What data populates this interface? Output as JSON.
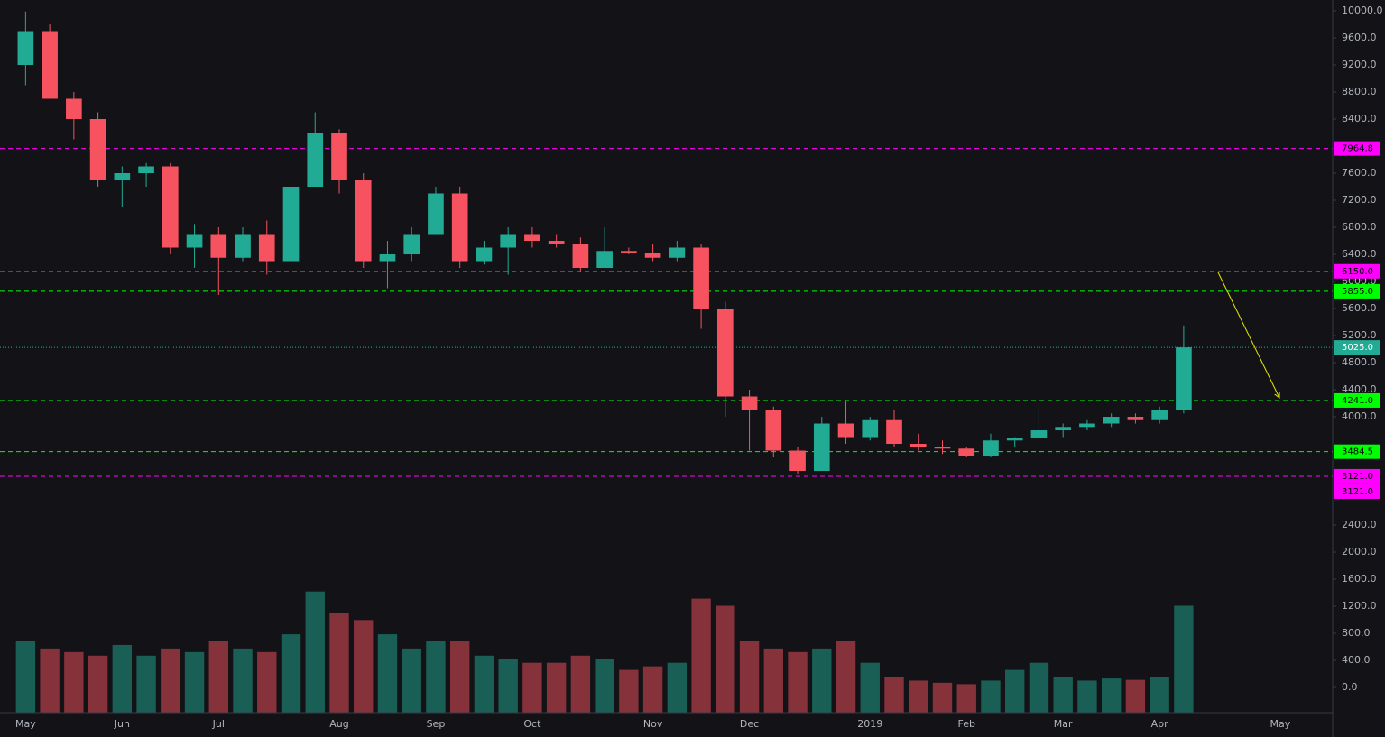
{
  "chart_data": {
    "type": "candlestick",
    "categories": [
      "May",
      null,
      null,
      null,
      "Jun",
      null,
      null,
      null,
      "Jul",
      null,
      null,
      null,
      null,
      "Aug",
      null,
      null,
      null,
      "Sep",
      null,
      null,
      null,
      "Oct",
      null,
      null,
      null,
      null,
      "Nov",
      null,
      null,
      null,
      "Dec",
      null,
      null,
      null,
      null,
      "2019",
      null,
      null,
      null,
      "Feb",
      null,
      null,
      null,
      "Mar",
      null,
      null,
      null,
      "Apr",
      null,
      null,
      null,
      null,
      "May"
    ],
    "open": [
      9200,
      9700,
      8700,
      8400,
      7500,
      7600,
      7700,
      6500,
      6700,
      6350,
      6700,
      6300,
      7400,
      8200,
      7500,
      6300,
      6400,
      6700,
      7300,
      6300,
      6500,
      6700,
      6600,
      6550,
      6200,
      6450,
      6420,
      6350,
      6500,
      5600,
      4300,
      4100,
      3500,
      3200,
      3900,
      3700,
      3950,
      3600,
      3550,
      3530,
      3420,
      3650,
      3680,
      3800,
      3850,
      3900,
      4000,
      3950,
      4100,
      null,
      null,
      null,
      null
    ],
    "high": [
      9990,
      9800,
      8800,
      8500,
      7700,
      7750,
      7750,
      6850,
      6800,
      6800,
      6900,
      7500,
      8500,
      8250,
      7600,
      6600,
      6800,
      7400,
      7400,
      6600,
      6800,
      6800,
      6700,
      6650,
      6800,
      6500,
      6550,
      6600,
      6550,
      5700,
      4400,
      4150,
      3550,
      4000,
      4250,
      4000,
      4100,
      3750,
      3650,
      3550,
      3750,
      3700,
      4200,
      3900,
      3950,
      4050,
      4050,
      4150,
      5350,
      null,
      null,
      null,
      null
    ],
    "low": [
      8900,
      8800,
      8100,
      7400,
      7100,
      7400,
      6400,
      6200,
      5800,
      6300,
      6100,
      6300,
      7400,
      7300,
      6200,
      5900,
      6300,
      6700,
      6200,
      6250,
      6100,
      6500,
      6500,
      6150,
      6200,
      6400,
      6300,
      6300,
      5300,
      4000,
      3500,
      3400,
      3150,
      3200,
      3600,
      3650,
      3550,
      3500,
      3450,
      3400,
      3400,
      3550,
      3650,
      3700,
      3800,
      3850,
      3900,
      3900,
      4050,
      null,
      null,
      null,
      null
    ],
    "close": [
      9700,
      8700,
      8400,
      7500,
      7600,
      7700,
      6500,
      6700,
      6350,
      6700,
      6300,
      7400,
      8200,
      7500,
      6300,
      6400,
      6700,
      7300,
      6300,
      6500,
      6700,
      6600,
      6550,
      6200,
      6450,
      6420,
      6350,
      6500,
      5600,
      4300,
      4100,
      3500,
      3200,
      3900,
      3700,
      3950,
      3600,
      3550,
      3530,
      3420,
      3650,
      3680,
      3800,
      3850,
      3900,
      4000,
      3950,
      4100,
      5025,
      null,
      null,
      null,
      null
    ],
    "volume": [
      1000,
      900,
      850,
      800,
      950,
      800,
      900,
      850,
      1000,
      900,
      850,
      1100,
      1700,
      1400,
      1300,
      1100,
      900,
      1000,
      1000,
      800,
      750,
      700,
      700,
      800,
      750,
      600,
      650,
      700,
      1600,
      1500,
      1000,
      900,
      850,
      900,
      1000,
      700,
      500,
      450,
      420,
      400,
      450,
      600,
      700,
      500,
      450,
      480,
      460,
      500,
      1500,
      null,
      null,
      null,
      null
    ],
    "up_color": "#22ab94",
    "down_color": "#f7525f",
    "ylim": [
      -373,
      10160
    ],
    "y2lim": [
      0,
      10000
    ],
    "yticks": [
      {
        "value": 0,
        "label": "0.0"
      },
      {
        "value": 400,
        "label": "400.0"
      },
      {
        "value": 800,
        "label": "800.0"
      },
      {
        "value": 1200,
        "label": "1200.0"
      },
      {
        "value": 1600,
        "label": "1600.0"
      },
      {
        "value": 2000,
        "label": "2000.0"
      },
      {
        "value": 2400,
        "label": "2400.0"
      },
      {
        "value": 4000,
        "label": "4000.0"
      },
      {
        "value": 4400,
        "label": "4400.0"
      },
      {
        "value": 4800,
        "label": "4800.0"
      },
      {
        "value": 5200,
        "label": "5200.0"
      },
      {
        "value": 5600,
        "label": "5600.0"
      },
      {
        "value": 6000,
        "label": "6000.0"
      },
      {
        "value": 6400,
        "label": "6400.0"
      },
      {
        "value": 6800,
        "label": "6800.0"
      },
      {
        "value": 7200,
        "label": "7200.0"
      },
      {
        "value": 7600,
        "label": "7600.0"
      },
      {
        "value": 8400,
        "label": "8400.0"
      },
      {
        "value": 8800,
        "label": "8800.0"
      },
      {
        "value": 9200,
        "label": "9200.0"
      },
      {
        "value": 9600,
        "label": "9600.0"
      },
      {
        "value": 10000,
        "label": "10000.0"
      }
    ],
    "levels": [
      {
        "value": 7964.8,
        "color": "#ff00ff",
        "label_color": "#000000",
        "style": "dashed"
      },
      {
        "value": {
          "value": 6150,
          "label": "6150.0"
        },
        "color": "#ff00ff",
        "label_color": "#000000",
        "style": "dashed"
      },
      {
        "value": 5855,
        "label": "5855.0",
        "color": "#00ff00",
        "label_color": "#000000",
        "style": "dashed"
      },
      {
        "value": 5025,
        "label": "5025.0",
        "color": "#22ab94",
        "label_color": "#ffffff",
        "style": "dotted"
      },
      {
        "value": 4241,
        "label": "4241.0",
        "color": "#00ff00",
        "label_color": "#000000",
        "style": "dashed"
      },
      {
        "value": 3484.5,
        "color": "#00ff00",
        "label_color": "#000000",
        "style": "dashed"
      },
      {
        "value": 3121,
        "label": "3121.0",
        "color": "#ff00ff",
        "label_color": "#000000",
        "style": "dashed"
      },
      {
        "value": 3121,
        "label": "3121.0",
        "color": "#ff00ff",
        "label_color": "#000000",
        "style": "dashed"
      }
    ]
  }
}
